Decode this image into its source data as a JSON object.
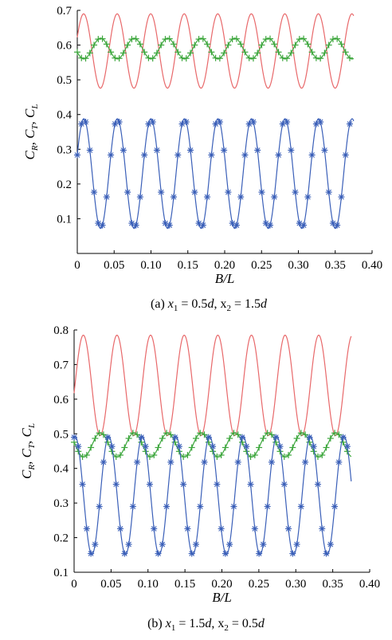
{
  "chart_data": [
    {
      "type": "line",
      "xlabel": "B/L",
      "ylabel": "C_R, C_T, C_L",
      "caption": {
        "label": "(a) ",
        "x1": "x",
        "x1sub": "1",
        "eq1": " = 0.5",
        "d1": "d",
        "sep": ", x",
        "x2sub": "2",
        "eq2": " = 1.5",
        "d2": "d"
      },
      "xlim": [
        0,
        0.4
      ],
      "ylim": [
        0.0,
        0.7
      ],
      "xticks": [
        "0",
        "0.05",
        "0.10",
        "0.15",
        "0.20",
        "0.25",
        "0.30",
        "0.35",
        "0.40"
      ],
      "yticks": [
        "0.1",
        "0.2",
        "0.3",
        "0.4",
        "0.5",
        "0.6",
        "0.7"
      ],
      "series": [
        {
          "color": "#e8686a",
          "marker": "none",
          "period": 0.0455,
          "center": 0.583,
          "amp": 0.107,
          "phase": 0.19
        },
        {
          "color": "#3aa53a",
          "marker": "plus",
          "period": 0.0455,
          "center": 0.59,
          "amp": 0.03,
          "phase": 0.695
        },
        {
          "color": "#3a5fb8",
          "marker": "star",
          "period": 0.0455,
          "center": 0.23,
          "amp": 0.158,
          "phase": 0.195
        }
      ]
    },
    {
      "type": "line",
      "xlabel": "B/L",
      "ylabel": "C_R, C_T, C_L",
      "caption": {
        "label": "(b) ",
        "x1": "x",
        "x1sub": "1",
        "eq1": " = 1.5",
        "d1": "d",
        "sep": ", x",
        "x2sub": "2",
        "eq2": " = 0.5",
        "d2": "d"
      },
      "xlim": [
        0,
        0.4
      ],
      "ylim": [
        0.1,
        0.8
      ],
      "xticks": [
        "0",
        "0.05",
        "0.10",
        "0.15",
        "0.20",
        "0.25",
        "0.30",
        "0.35",
        "0.40"
      ],
      "yticks": [
        "0.1",
        "0.2",
        "0.3",
        "0.4",
        "0.5",
        "0.6",
        "0.7",
        "0.8"
      ],
      "series": [
        {
          "color": "#e8686a",
          "marker": "none",
          "period": 0.0455,
          "center": 0.64,
          "amp": 0.145,
          "phase": 0.275
        },
        {
          "color": "#3aa53a",
          "marker": "plus",
          "period": 0.0455,
          "center": 0.468,
          "amp": 0.035,
          "phase": 0.785
        },
        {
          "color": "#3a5fb8",
          "marker": "star",
          "period": 0.0455,
          "center": 0.322,
          "amp": 0.171,
          "phase": 0.03
        }
      ]
    }
  ]
}
